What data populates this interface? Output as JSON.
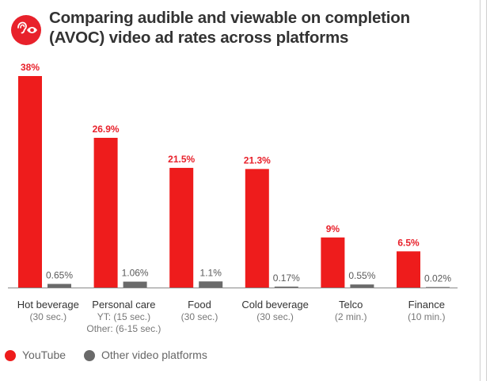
{
  "header": {
    "title_line1": "Comparing audible and viewable on completion",
    "title_line2": "(AVOC) video ad rates across platforms",
    "icon": "ear-eye-icon"
  },
  "colors": {
    "youtube": "#ee1c1c",
    "other": "#6a6a6a",
    "label_red": "#e8212b",
    "label_gray": "#5a5a5a",
    "category": "#333333",
    "sublabel": "#777777",
    "axis": "#888888"
  },
  "chart_data": {
    "type": "bar",
    "title": "Comparing audible and viewable on completion (AVOC) video ad rates across platforms",
    "categories": [
      {
        "name": "Hot beverage",
        "sub": [
          "(30 sec.)"
        ]
      },
      {
        "name": "Personal care",
        "sub": [
          "YT: (15 sec.)",
          "Other: (6-15 sec.)"
        ]
      },
      {
        "name": "Food",
        "sub": [
          "(30 sec.)"
        ]
      },
      {
        "name": "Cold beverage",
        "sub": [
          "(30 sec.)"
        ]
      },
      {
        "name": "Telco",
        "sub": [
          "(2 min.)"
        ]
      },
      {
        "name": "Finance",
        "sub": [
          "(10 min.)"
        ]
      }
    ],
    "series": [
      {
        "name": "YouTube",
        "values": [
          38,
          26.9,
          21.5,
          21.3,
          9,
          6.5
        ],
        "labels": [
          "38%",
          "26.9%",
          "21.5%",
          "21.3%",
          "9%",
          "6.5%"
        ]
      },
      {
        "name": "Other video platforms",
        "values": [
          0.65,
          1.06,
          1.1,
          0.17,
          0.55,
          0.02
        ],
        "labels": [
          "0.65%",
          "1.06%",
          "1.1%",
          "0.17%",
          "0.55%",
          "0.02%"
        ]
      }
    ],
    "ylim": [
      0,
      38
    ],
    "grid": false,
    "legend_position": "bottom-left"
  },
  "legend": {
    "items": [
      {
        "label": "YouTube"
      },
      {
        "label": "Other video platforms"
      }
    ]
  }
}
